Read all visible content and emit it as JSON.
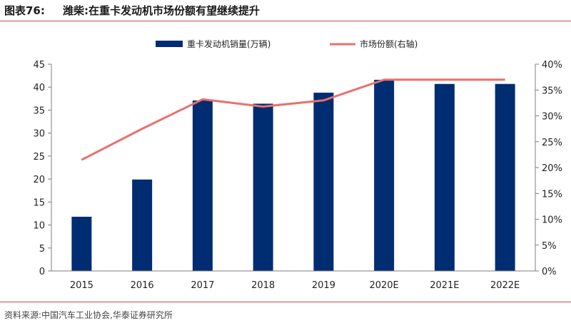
{
  "header": {
    "figure_number": "图表76:",
    "title": "潍柴:在重卡发动机市场份额有望继续提升"
  },
  "footer": {
    "source": "资料来源:中国汽车工业协会,华泰证券研究所"
  },
  "colors": {
    "bar": "#002d72",
    "line": "#e8716d",
    "axis": "#7f7f7f",
    "rule": "#c0504d"
  },
  "chart_data": {
    "type": "bar",
    "categories": [
      "2015",
      "2016",
      "2017",
      "2018",
      "2019",
      "2020E",
      "2021E",
      "2022E"
    ],
    "series": [
      {
        "name": "重卡发动机销量(万辆)",
        "type": "bar",
        "axis": "left",
        "values": [
          11.8,
          19.9,
          37.1,
          36.4,
          38.8,
          41.6,
          40.7,
          40.7
        ]
      },
      {
        "name": "市场份额(右轴)",
        "type": "line",
        "axis": "right",
        "values": [
          21.5,
          27.5,
          33.2,
          31.8,
          33.0,
          37.0,
          37.0,
          37.0
        ]
      }
    ],
    "ylim": [
      0,
      45
    ],
    "yticks": [
      0,
      5,
      10,
      15,
      20,
      25,
      30,
      35,
      40,
      45
    ],
    "y2lim": [
      0,
      40
    ],
    "y2ticks": [
      "0%",
      "5%",
      "10%",
      "15%",
      "20%",
      "25%",
      "30%",
      "35%",
      "40%"
    ],
    "legend_position": "top-center",
    "grid": false
  }
}
